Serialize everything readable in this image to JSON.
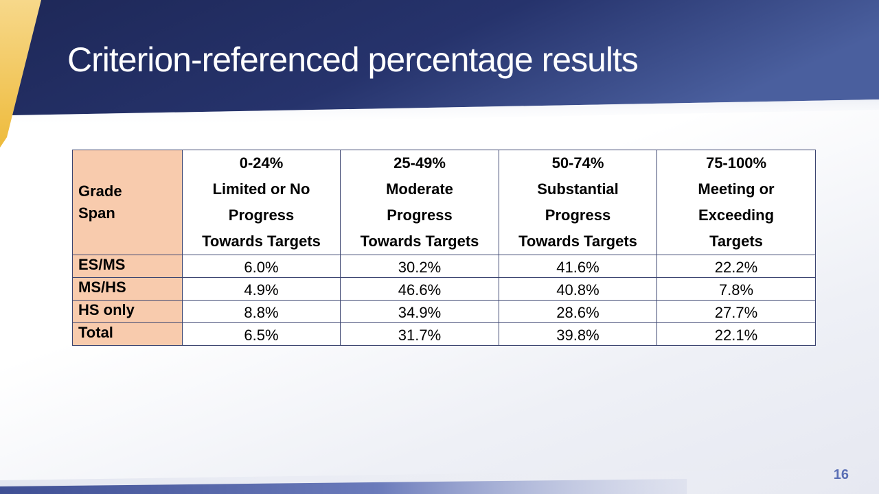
{
  "slide": {
    "title": "Criterion-referenced percentage results",
    "page_number": "16",
    "colors": {
      "header_dark": "#1f2a5a",
      "header_light": "#4a5f9e",
      "accent_gold": "#f2c24a",
      "row_header_fill": "#f8cbad",
      "page_number": "#5a6fb5"
    }
  },
  "table": {
    "corner_header": [
      "Grade",
      "Span"
    ],
    "columns": [
      {
        "range": "0-24%",
        "lines": [
          "Limited or No",
          "Progress",
          "Towards Targets"
        ]
      },
      {
        "range": "25-49%",
        "lines": [
          "Moderate",
          "Progress",
          "Towards Targets"
        ]
      },
      {
        "range": "50-74%",
        "lines": [
          "Substantial",
          "Progress",
          "Towards Targets"
        ]
      },
      {
        "range": "75-100%",
        "lines": [
          "Meeting or",
          "Exceeding",
          "Targets"
        ]
      }
    ],
    "rows": [
      {
        "label": "ES/MS",
        "values": [
          "6.0%",
          "30.2%",
          "41.6%",
          "22.2%"
        ]
      },
      {
        "label": "MS/HS",
        "values": [
          "4.9%",
          "46.6%",
          "40.8%",
          "7.8%"
        ]
      },
      {
        "label": "HS only",
        "values": [
          "8.8%",
          "34.9%",
          "28.6%",
          "27.7%"
        ]
      },
      {
        "label": "Total",
        "values": [
          "6.5%",
          "31.7%",
          "39.8%",
          "22.1%"
        ]
      }
    ]
  }
}
